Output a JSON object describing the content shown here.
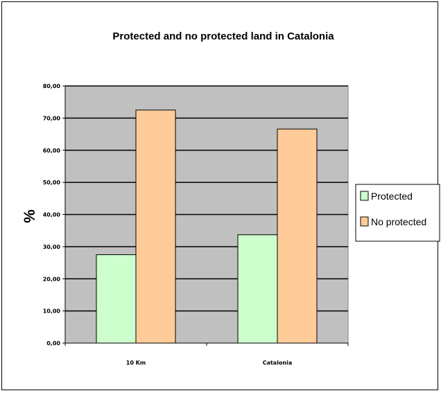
{
  "chart_data": {
    "type": "bar",
    "title": "Protected and no protected land in Catalonia",
    "xlabel": "",
    "ylabel": "%",
    "categories": [
      "10 Km",
      "Catalonia"
    ],
    "series": [
      {
        "name": "Protected",
        "values": [
          27.5,
          33.7
        ],
        "color": "#ccffcc"
      },
      {
        "name": "No protected",
        "values": [
          72.5,
          66.6
        ],
        "color": "#ffcc99"
      }
    ],
    "ylim": [
      0,
      80
    ],
    "yticks": [
      "0,00",
      "10,00",
      "20,00",
      "30,00",
      "40,00",
      "50,00",
      "60,00",
      "70,00",
      "80,00"
    ],
    "grid": true,
    "plot_background": "#c0c0c0",
    "legend_position": "right"
  }
}
